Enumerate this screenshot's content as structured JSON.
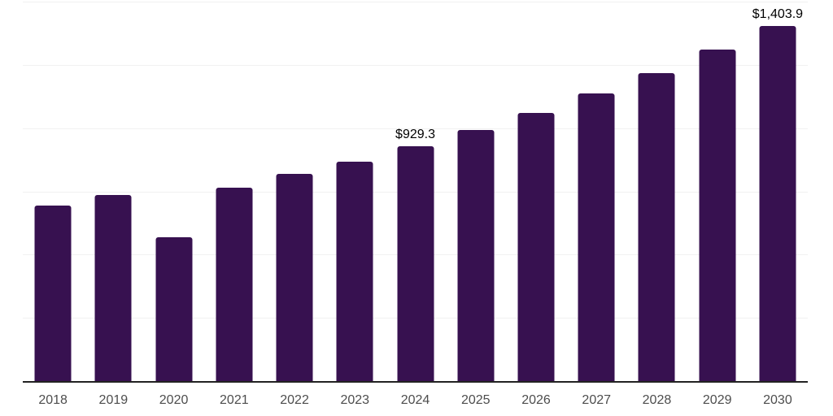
{
  "chart_data": {
    "type": "bar",
    "title": "",
    "xlabel": "",
    "ylabel": "",
    "categories": [
      "2018",
      "2019",
      "2020",
      "2021",
      "2022",
      "2023",
      "2024",
      "2025",
      "2026",
      "2027",
      "2028",
      "2029",
      "2030"
    ],
    "values": [
      695,
      737,
      567,
      766,
      818,
      866,
      929.3,
      991,
      1059,
      1136,
      1219,
      1309,
      1403.9
    ],
    "data_labels": {
      "2024": "$929.3",
      "2030": "$1,403.9"
    },
    "ylim": [
      0,
      1500
    ],
    "ytick_step": 250,
    "y_tick_labels_shown": false,
    "grid": "horizontal",
    "legend": "none",
    "colors": {
      "bar": "#371150",
      "gridline": "#f1f1f1",
      "axis_line": "#222222",
      "x_tick_label": "#4d4d4d",
      "data_label": "#000000",
      "background": "#ffffff"
    }
  }
}
